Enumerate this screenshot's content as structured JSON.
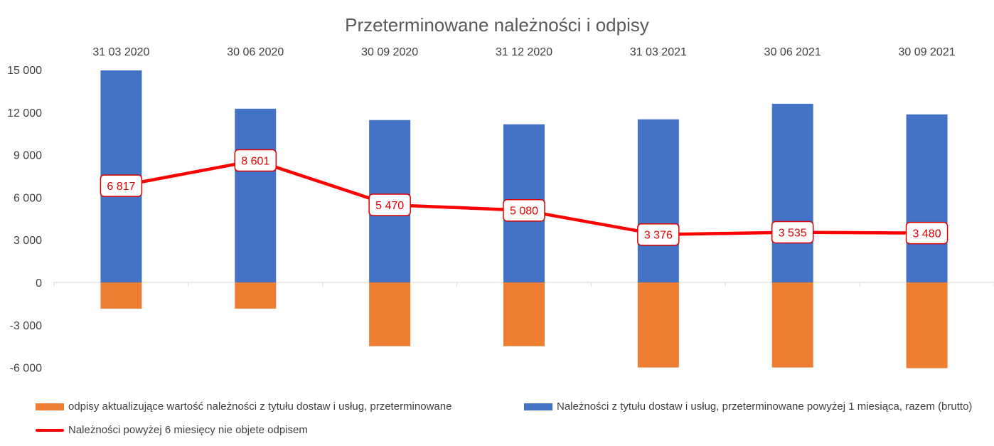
{
  "chart_data": {
    "type": "bar",
    "title": "Przeterminowane należności i odpisy",
    "categories": [
      "31 03 2020",
      "30 06 2020",
      "30 09 2020",
      "31 12 2020",
      "31 03 2021",
      "30 06 2021",
      "30 09 2021"
    ],
    "y_ticks": [
      "15 000",
      "12 000",
      "9 000",
      "6 000",
      "3 000",
      "0",
      "-3 000",
      "-6 000"
    ],
    "ylim": [
      -6000,
      15000
    ],
    "grid": false,
    "legend_position": "bottom",
    "series": [
      {
        "name": "odpisy aktualizujące wartość należności z tytułu dostaw i usług, przeterminowane",
        "type": "bar",
        "color": "#ed7d31",
        "values": [
          -1850,
          -1850,
          -4500,
          -4500,
          -6000,
          -6000,
          -6050
        ]
      },
      {
        "name": "Należności z tytułu dostaw i usług, przeterminowane powyżej 1 miesiąca, razem (brutto)",
        "type": "bar",
        "color": "#4472c4",
        "values": [
          14950,
          12250,
          11450,
          11150,
          11500,
          12600,
          11850
        ]
      },
      {
        "name": "Należności powyżej 6 miesięcy nie objete odpisem",
        "type": "line",
        "color": "#ff0000",
        "values": [
          6817,
          8601,
          5470,
          5080,
          3376,
          3535,
          3480
        ],
        "labels": [
          "6 817",
          "8 601",
          "5 470",
          "5 080",
          "3 376",
          "3 535",
          "3 480"
        ]
      }
    ]
  }
}
